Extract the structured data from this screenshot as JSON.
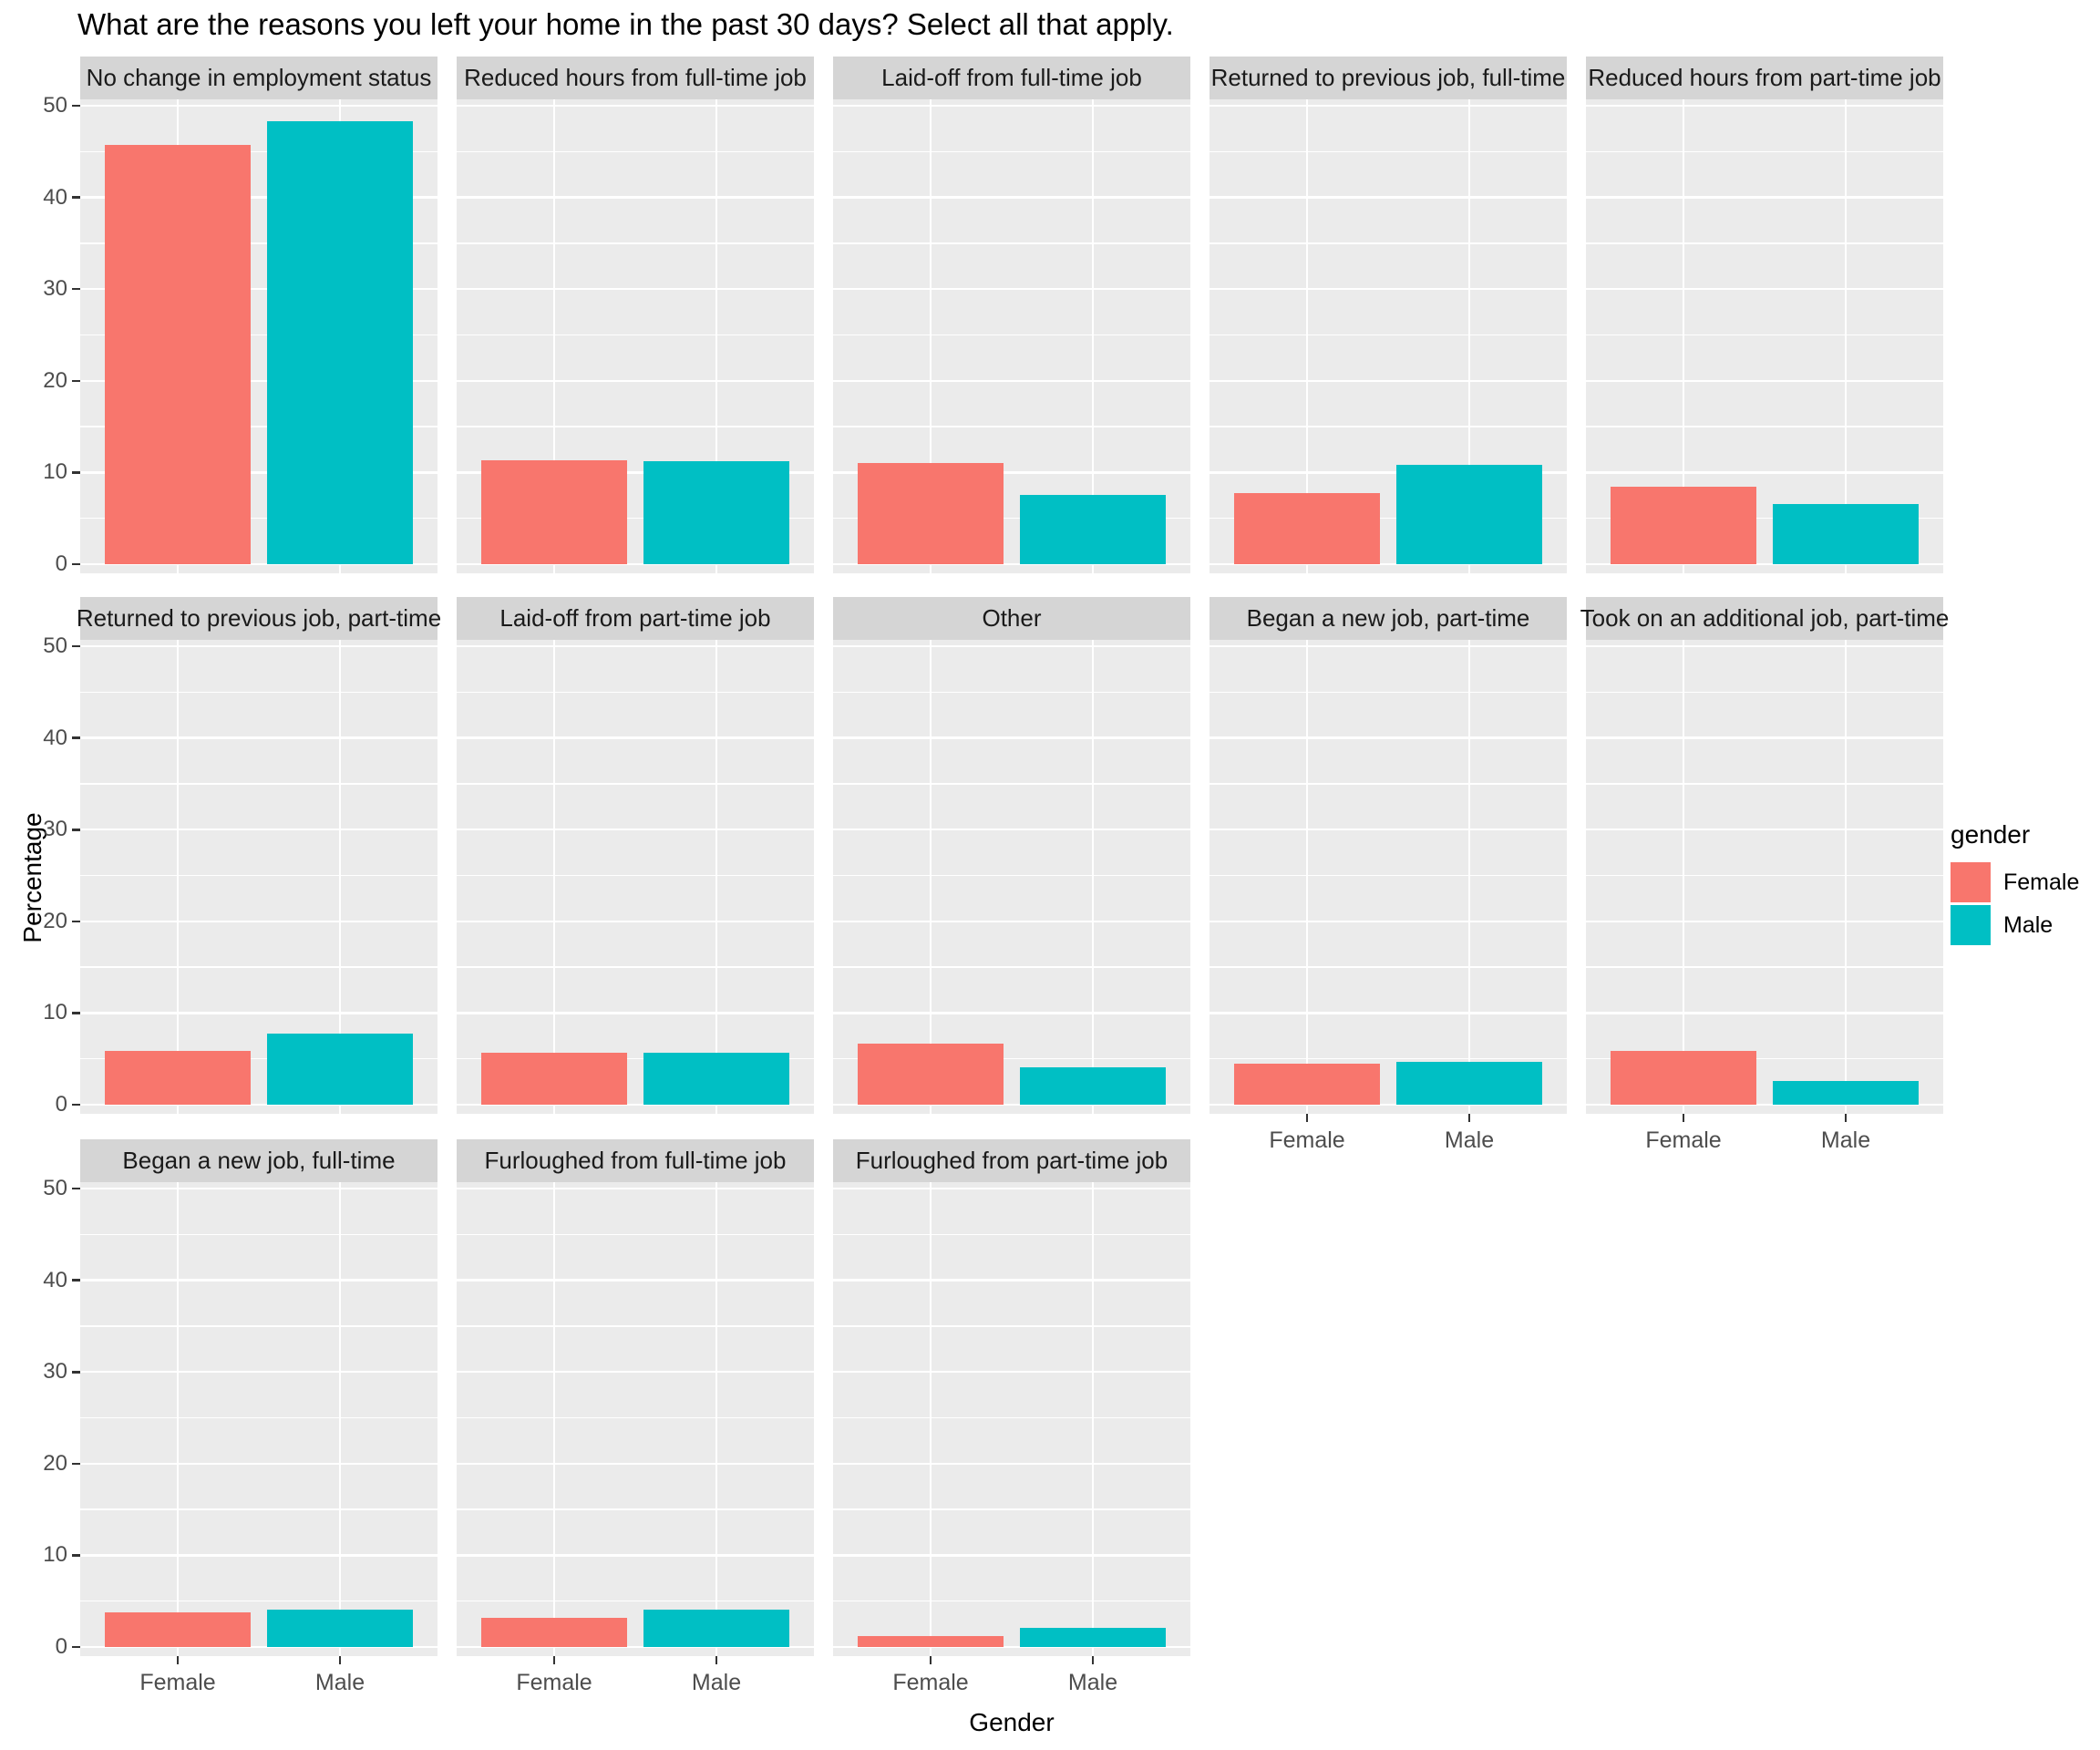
{
  "title": "What are the reasons you left your home in the past 30 days? Select all that apply.",
  "axes": {
    "x_title": "Gender",
    "y_title": "Percentage",
    "y_ticks": [
      0,
      10,
      20,
      30,
      40,
      50
    ],
    "x_categories": [
      "Female",
      "Male"
    ]
  },
  "legend": {
    "title": "gender",
    "items": [
      {
        "label": "Female",
        "color": "#F8766D"
      },
      {
        "label": "Male",
        "color": "#00BFC4"
      }
    ]
  },
  "colors": {
    "panel_background": "#EBEBEB",
    "strip_background": "#D5D5D5",
    "gridline": "#FFFFFF",
    "axis_text": "#4D4D4D",
    "female_bar": "#F8766D",
    "male_bar": "#00BFC4"
  },
  "chart_data": {
    "type": "bar",
    "title": "What are the reasons you left your home in the past 30 days? Select all that apply.",
    "xlabel": "Gender",
    "ylabel": "Percentage",
    "ylim": [
      0,
      50
    ],
    "grid": true,
    "legend_title": "gender",
    "legend_position": "right",
    "categories": [
      "Female",
      "Male"
    ],
    "facet_layout": {
      "columns": 5,
      "rows": 3
    },
    "facets": [
      {
        "label": "No change in employment status",
        "values": {
          "Female": 45.7,
          "Male": 48.3
        }
      },
      {
        "label": "Reduced hours from full-time job",
        "values": {
          "Female": 11.3,
          "Male": 11.2
        }
      },
      {
        "label": "Laid-off from full-time job",
        "values": {
          "Female": 11.0,
          "Male": 7.6
        }
      },
      {
        "label": "Returned to previous job, full-time",
        "values": {
          "Female": 7.8,
          "Male": 10.8
        }
      },
      {
        "label": "Reduced hours from part-time job",
        "values": {
          "Female": 8.5,
          "Male": 6.6
        }
      },
      {
        "label": "Returned to previous job, part-time",
        "values": {
          "Female": 5.9,
          "Male": 7.8
        }
      },
      {
        "label": "Laid-off from part-time job",
        "values": {
          "Female": 5.7,
          "Male": 5.7
        }
      },
      {
        "label": "Other",
        "values": {
          "Female": 6.7,
          "Male": 4.1
        }
      },
      {
        "label": "Began a new job, part-time",
        "values": {
          "Female": 4.5,
          "Male": 4.7
        }
      },
      {
        "label": "Took on an additional job, part-time",
        "values": {
          "Female": 5.9,
          "Male": 2.6
        }
      },
      {
        "label": "Began a new job, full-time",
        "values": {
          "Female": 3.8,
          "Male": 4.1
        }
      },
      {
        "label": "Furloughed from full-time job",
        "values": {
          "Female": 3.2,
          "Male": 4.1
        }
      },
      {
        "label": "Furloughed from part-time job",
        "values": {
          "Female": 1.2,
          "Male": 2.1
        }
      }
    ]
  }
}
